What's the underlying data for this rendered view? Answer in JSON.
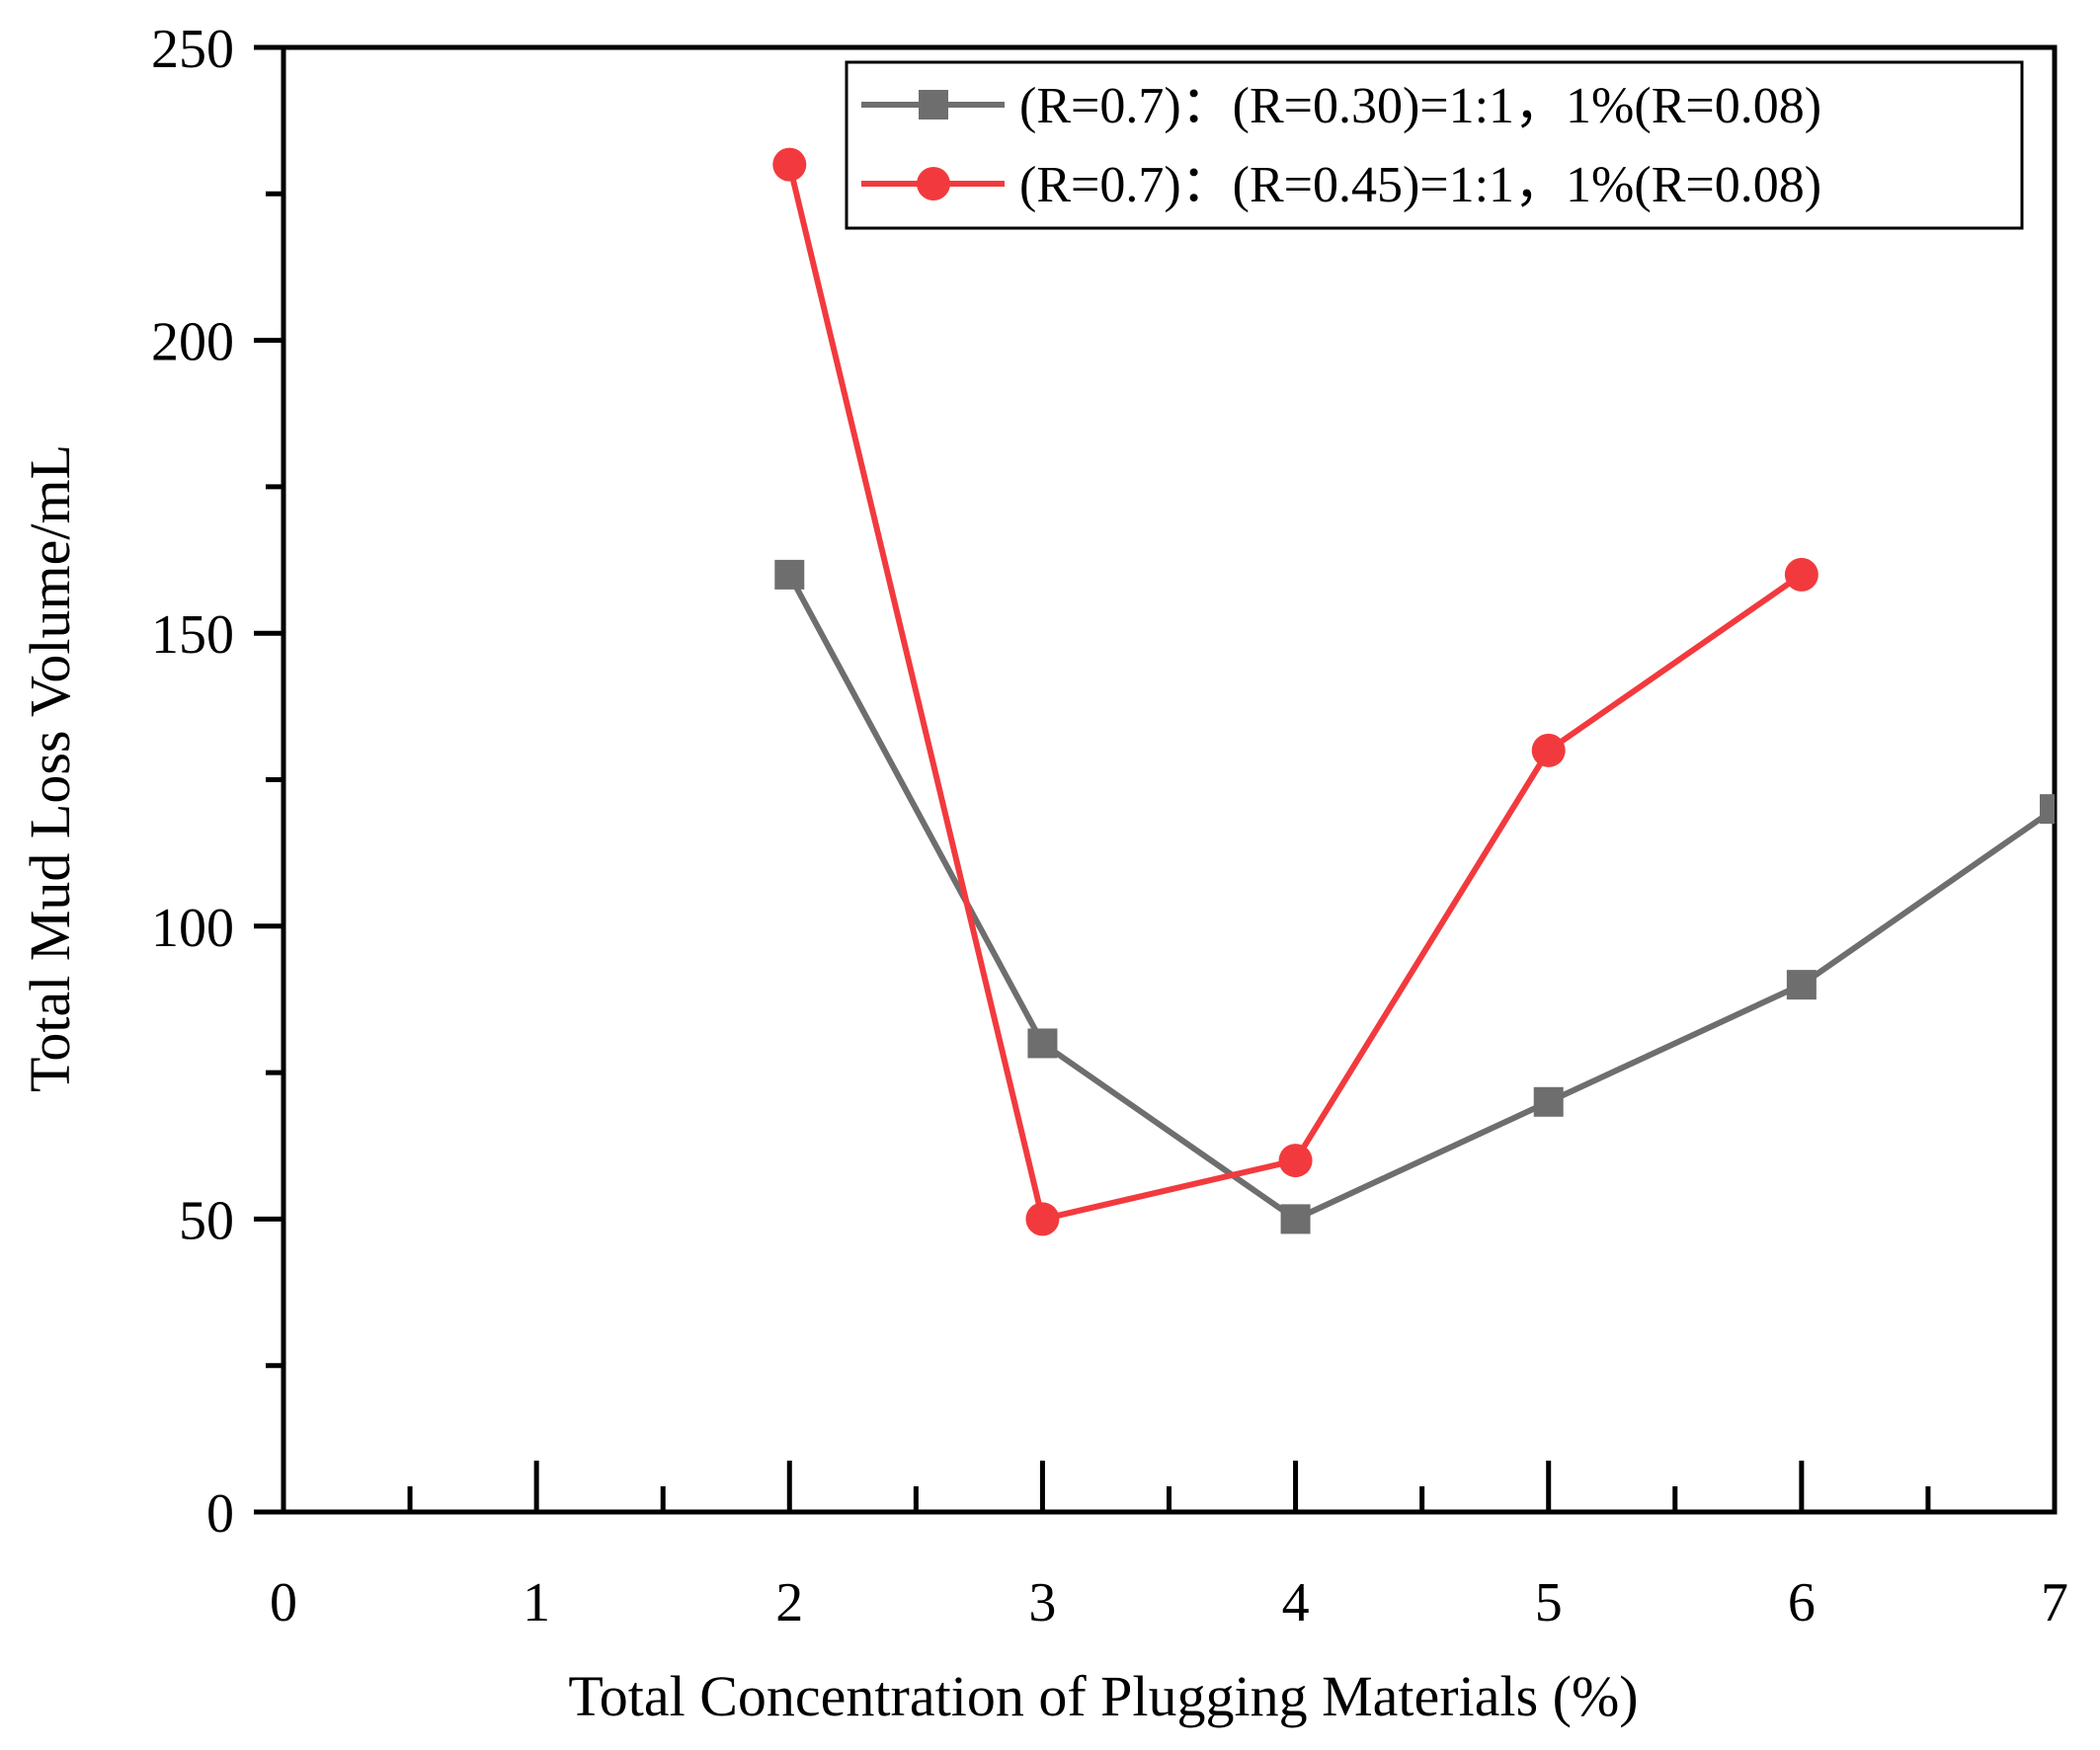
{
  "chart_data": {
    "type": "line",
    "xlabel": "Total Concentration of Plugging Materials (%)",
    "ylabel": "Total Mud Loss Volume/mL",
    "xlim": [
      0,
      7
    ],
    "ylim": [
      0,
      250
    ],
    "x_ticks": [
      0,
      1,
      2,
      3,
      4,
      5,
      6,
      7
    ],
    "x_tick_labels": [
      "0",
      "1",
      "2",
      "3",
      "4",
      "5",
      "6",
      "7"
    ],
    "y_ticks": [
      0,
      50,
      100,
      150,
      200,
      250
    ],
    "y_tick_labels": [
      "0",
      "50",
      "100",
      "150",
      "200",
      "250"
    ],
    "grid": false,
    "legend_position": "top-right",
    "series": [
      {
        "name": "(R=0.7)：(R=0.30)=1:1，1%(R=0.08)",
        "color": "#6e6e6e",
        "marker": "square",
        "x": [
          2,
          3,
          4,
          5,
          6,
          7
        ],
        "y": [
          160,
          80,
          50,
          70,
          90,
          120
        ]
      },
      {
        "name": "(R=0.7)：(R=0.45)=1:1，1%(R=0.08)",
        "color": "#f23a3e",
        "marker": "circle",
        "x": [
          2,
          3,
          4,
          5,
          6
        ],
        "y": [
          230,
          50,
          60,
          130,
          160
        ]
      }
    ]
  }
}
